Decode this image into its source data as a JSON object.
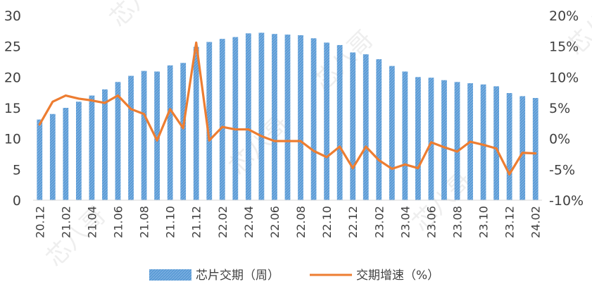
{
  "chart_data": {
    "type": "bar+line",
    "title": "",
    "xlabel": "",
    "ylabel": "",
    "categories": [
      "20.12",
      "21.01",
      "21.02",
      "21.03",
      "21.04",
      "21.05",
      "21.06",
      "21.07",
      "21.08",
      "21.09",
      "21.10",
      "21.11",
      "21.12",
      "22.01",
      "22.02",
      "22.03",
      "22.04",
      "22.05",
      "22.06",
      "22.07",
      "22.08",
      "22.09",
      "22.10",
      "22.11",
      "22.12",
      "23.01",
      "23.02",
      "23.03",
      "23.04",
      "23.05",
      "23.06",
      "23.07",
      "23.08",
      "23.09",
      "23.10",
      "23.11",
      "23.12",
      "24.01",
      "24.02"
    ],
    "x_tick_labels": [
      "20.12",
      "21.02",
      "21.04",
      "21.06",
      "21.08",
      "21.10",
      "21.12",
      "22.02",
      "22.04",
      "22.06",
      "22.08",
      "22.10",
      "22.12",
      "23.02",
      "23.04",
      "23.06",
      "23.08",
      "23.10",
      "23.12",
      "24.02"
    ],
    "series": [
      {
        "name": "芯片交期（周）",
        "type": "bar",
        "axis": "left",
        "color": "#5b9bd5",
        "values": [
          13.1,
          14.0,
          15.0,
          16.0,
          17.0,
          18.0,
          19.2,
          20.2,
          21.0,
          20.9,
          21.9,
          22.3,
          24.9,
          25.7,
          26.2,
          26.5,
          27.1,
          27.2,
          27.0,
          26.9,
          26.8,
          26.3,
          25.6,
          25.2,
          24.0,
          23.7,
          22.9,
          21.8,
          20.9,
          20.0,
          19.9,
          19.5,
          19.2,
          19.0,
          18.8,
          18.5,
          17.4,
          16.9,
          16.6
        ]
      },
      {
        "name": "交期增速（%）",
        "type": "line",
        "axis": "right",
        "color": "#ed7d31",
        "values": [
          2.3,
          6.0,
          7.0,
          6.5,
          6.2,
          5.8,
          7.0,
          4.8,
          4.0,
          -0.3,
          4.8,
          1.7,
          15.6,
          -0.3,
          1.9,
          1.5,
          1.5,
          0.4,
          -0.4,
          -0.4,
          -0.4,
          -2.0,
          -3.0,
          -1.3,
          -4.8,
          -1.3,
          -3.5,
          -4.9,
          -4.2,
          -4.8,
          -0.6,
          -1.4,
          -2.1,
          -0.5,
          -1.0,
          -1.6,
          -5.8,
          -2.3,
          -2.4
        ]
      }
    ],
    "y_left": {
      "range": [
        0,
        30
      ],
      "ticks": [
        0,
        5,
        10,
        15,
        20,
        25,
        30
      ],
      "tick_labels": [
        "0",
        "5",
        "10",
        "15",
        "20",
        "25",
        "30"
      ]
    },
    "y_right": {
      "range": [
        -10,
        20
      ],
      "ticks": [
        -10,
        -5,
        0,
        5,
        10,
        15,
        20
      ],
      "tick_labels": [
        "-10%",
        "-5%",
        "0%",
        "5%",
        "10%",
        "15%",
        "20%"
      ]
    },
    "grid": false,
    "legend_position": "bottom"
  },
  "watermark": {
    "text": "芯八哥"
  }
}
